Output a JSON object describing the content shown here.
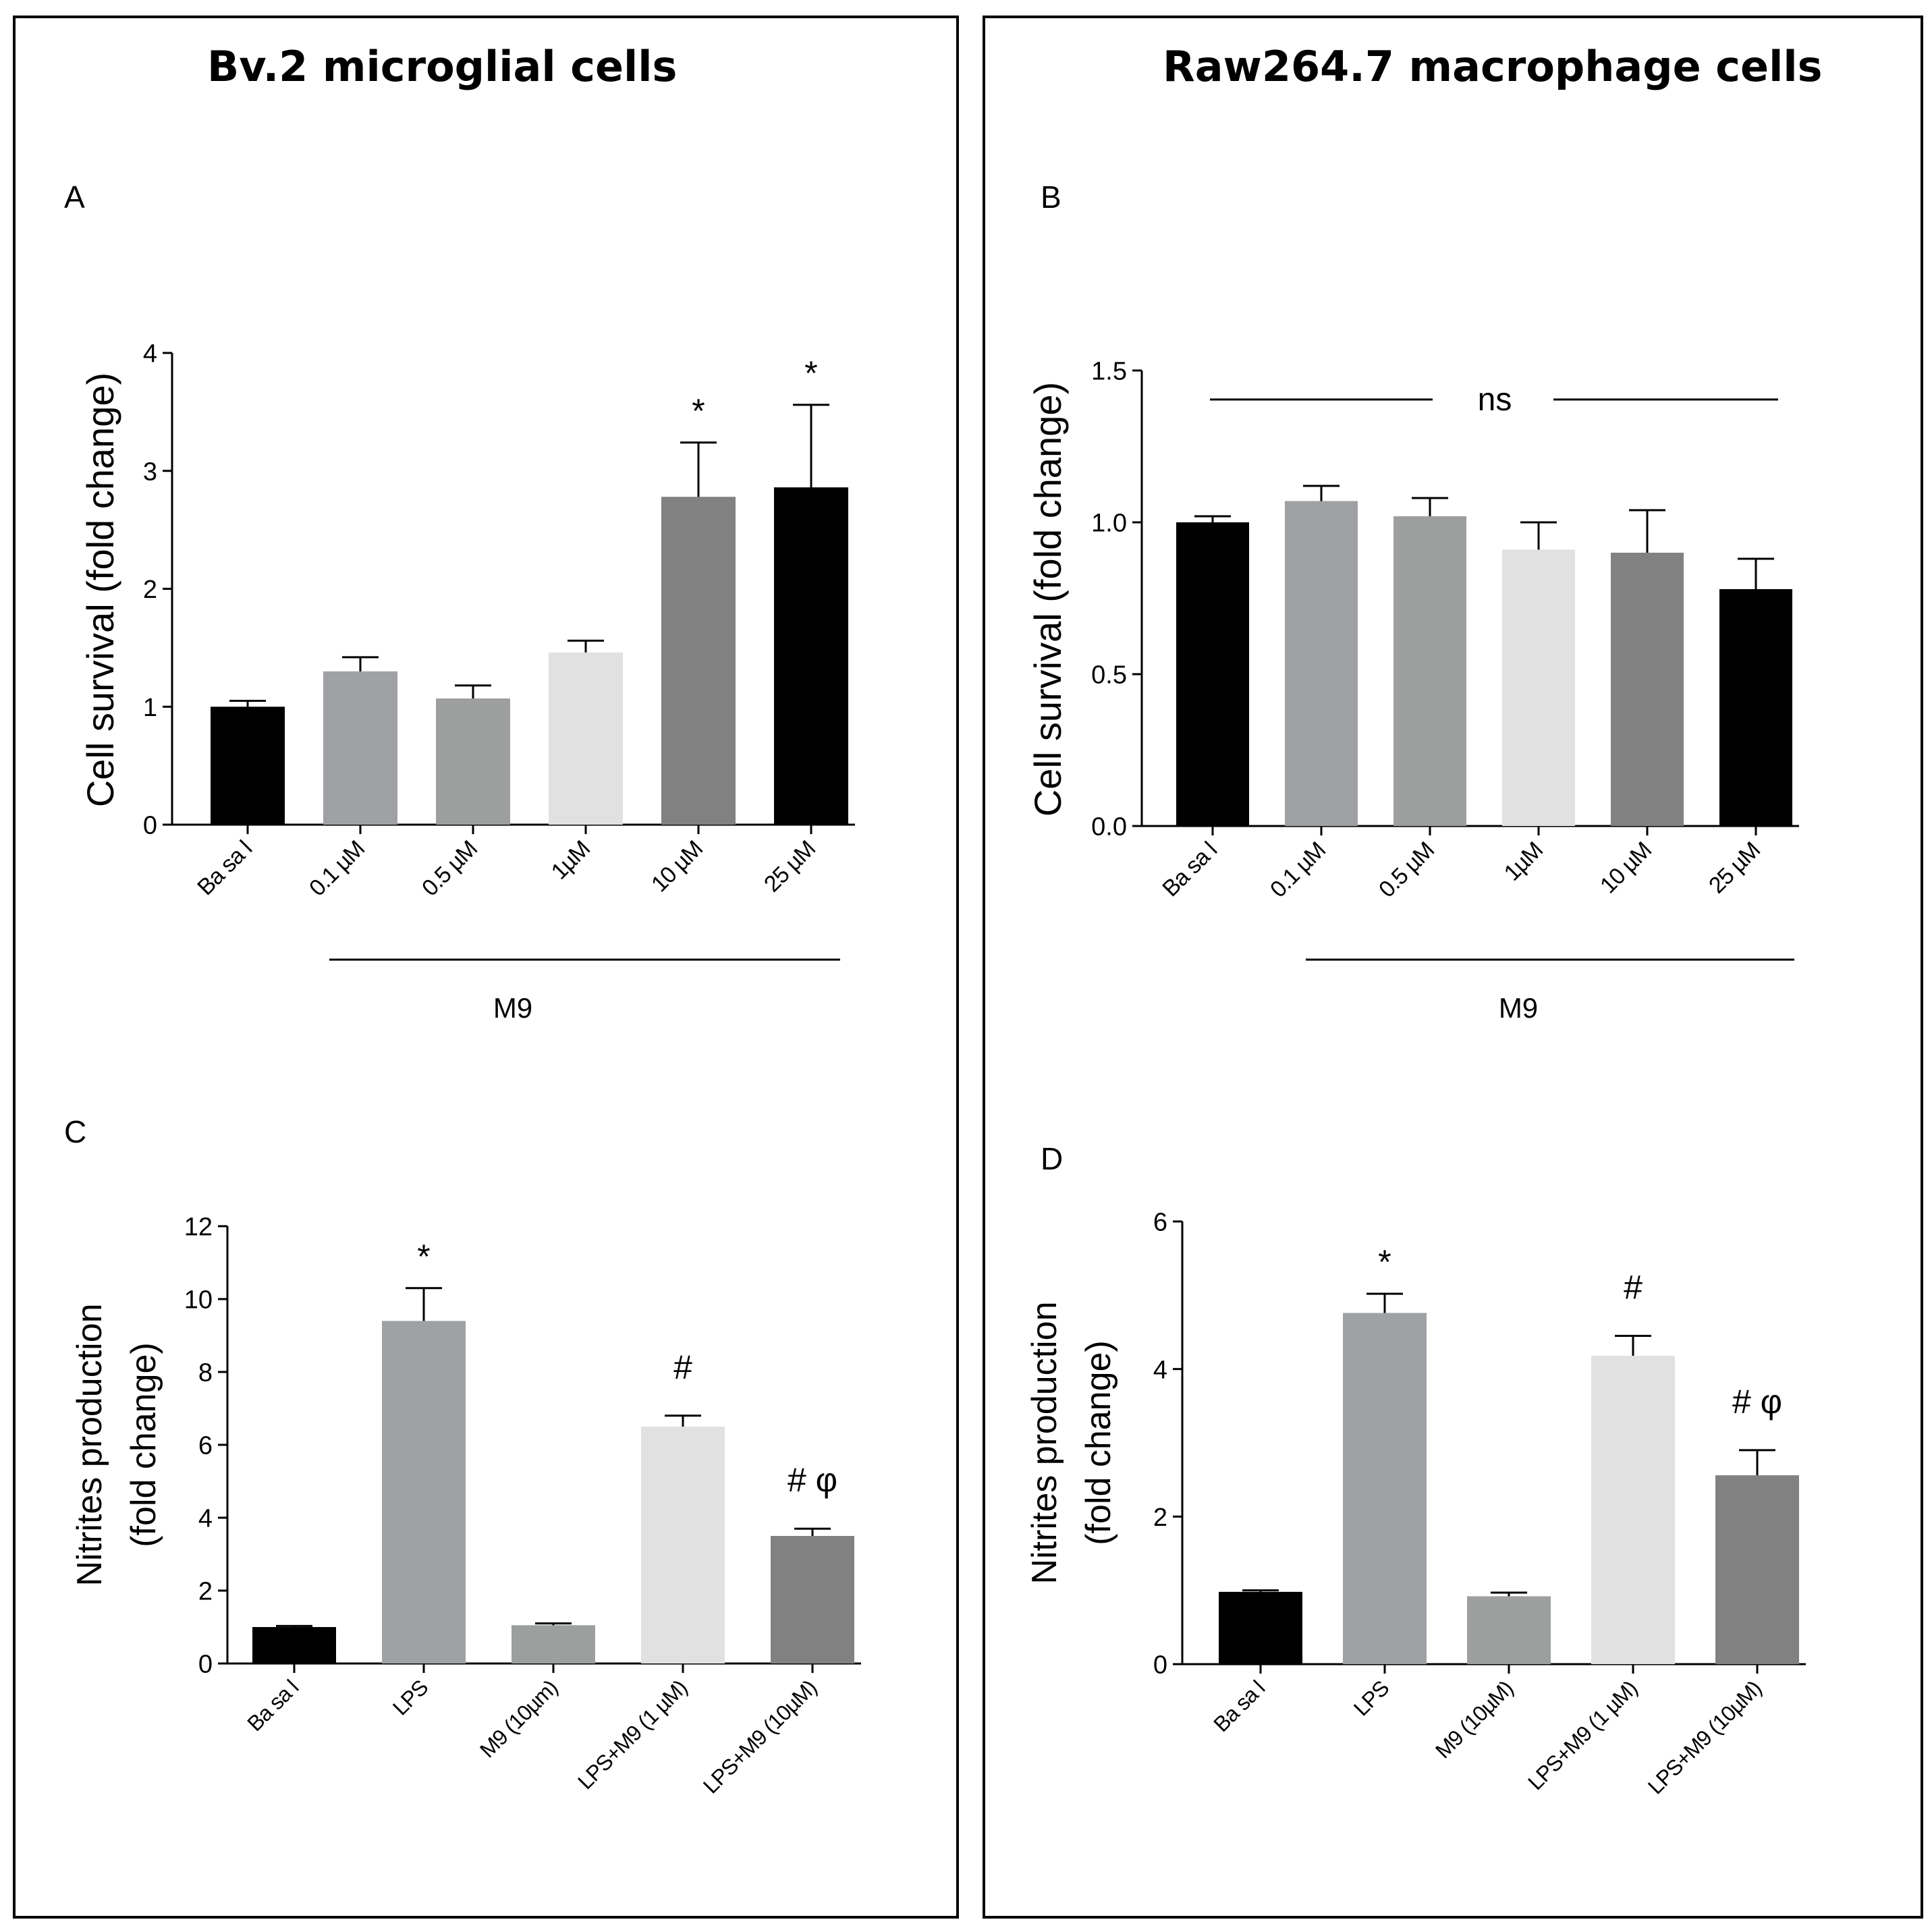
{
  "titles": {
    "left": "Bv.2 microglial  cells",
    "right": "Raw264.7 macrophage cells"
  },
  "panel_labels": {
    "A": "A",
    "B": "B",
    "C": "C",
    "D": "D"
  },
  "colors": {
    "black": "#000000",
    "mid_gray": "#a0a1a5",
    "light_mid_gray": "#9d9e9e",
    "very_light_gray": "#e1e1e1",
    "dark_gray": "#818181"
  },
  "chart_data": [
    {
      "id": "A",
      "type": "bar",
      "ylabel": "Cell survival (fold change)",
      "ylim": [
        0,
        4
      ],
      "yticks": [
        "0",
        "1",
        "2",
        "3",
        "4"
      ],
      "categories": [
        "Ba sa l",
        "0.1 µM",
        "0.5 µM",
        "1µM",
        "10 µM",
        "25 µM"
      ],
      "values": [
        1.0,
        1.3,
        1.07,
        1.46,
        2.78,
        2.86
      ],
      "errors": [
        0.05,
        0.12,
        0.11,
        0.1,
        0.46,
        0.7
      ],
      "bar_colors": [
        "#000000",
        "#a0a1a5",
        "#9d9e9e",
        "#e1e1e1",
        "#818181",
        "#000000"
      ],
      "significance": [
        "",
        "",
        "",
        "",
        "*",
        "*"
      ],
      "group_label": "M9"
    },
    {
      "id": "B",
      "type": "bar",
      "ylabel": "Cell survival (fold change)",
      "ylim": [
        0,
        1.5
      ],
      "yticks": [
        "0.0",
        "0.5",
        "1.0",
        "1.5"
      ],
      "categories": [
        "Ba sa l",
        "0.1 µM",
        "0.5 µM",
        "1µM",
        "10 µM",
        "25 µM"
      ],
      "values": [
        1.0,
        1.07,
        1.02,
        0.91,
        0.9,
        0.78
      ],
      "errors": [
        0.02,
        0.05,
        0.06,
        0.09,
        0.14,
        0.1
      ],
      "bar_colors": [
        "#000000",
        "#a0a1a5",
        "#9d9e9e",
        "#e1e1e1",
        "#818181",
        "#000000"
      ],
      "significance": [
        "",
        "",
        "",
        "",
        "",
        ""
      ],
      "annotation": "ns",
      "group_label": "M9"
    },
    {
      "id": "C",
      "type": "bar",
      "ylabel": "Nitrites production",
      "ylabel2": "(fold change)",
      "ylim": [
        0,
        12
      ],
      "yticks": [
        "0",
        "2",
        "4",
        "6",
        "8",
        "10",
        "12"
      ],
      "categories": [
        "Ba sa l",
        "LPS",
        "M9  (10µm)",
        "LPS+M9    (1 µM)",
        "LPS+M9    (10µM)"
      ],
      "values": [
        1.0,
        9.4,
        1.05,
        6.5,
        3.5
      ],
      "errors": [
        0.03,
        0.9,
        0.05,
        0.3,
        0.2
      ],
      "bar_colors": [
        "#000000",
        "#a0a1a5",
        "#9d9e9e",
        "#e1e1e1",
        "#818181"
      ],
      "significance": [
        "",
        "*",
        "",
        "#",
        "# φ"
      ]
    },
    {
      "id": "D",
      "type": "bar",
      "ylabel": "Nitrites production",
      "ylabel2": "(fold change)",
      "ylim": [
        0,
        6
      ],
      "yticks": [
        "0",
        "2",
        "4",
        "6"
      ],
      "categories": [
        "Ba sa l",
        "LPS",
        "M9  (10µM)",
        "LPS+M9    (1 µM)",
        "LPS+M9    (10µM)"
      ],
      "values": [
        0.98,
        4.76,
        0.92,
        4.18,
        2.56
      ],
      "errors": [
        0.02,
        0.26,
        0.05,
        0.27,
        0.34
      ],
      "bar_colors": [
        "#000000",
        "#a0a1a5",
        "#9d9e9e",
        "#e1e1e1",
        "#818181"
      ],
      "significance": [
        "",
        "*",
        "",
        "#",
        "# φ"
      ]
    }
  ]
}
